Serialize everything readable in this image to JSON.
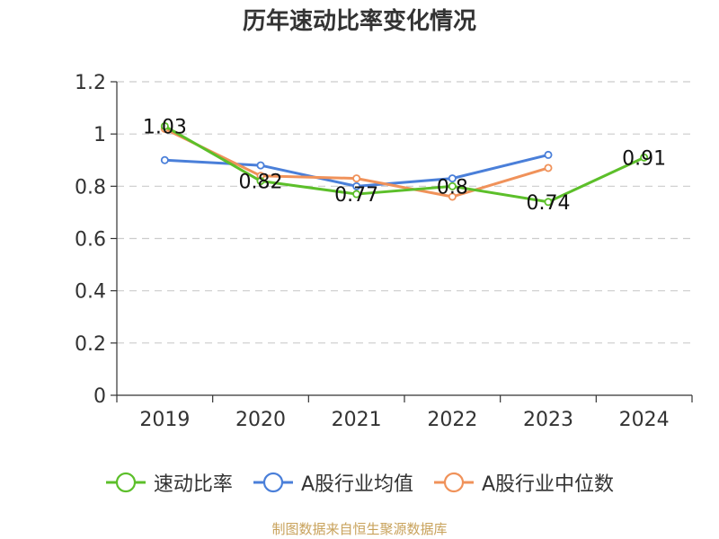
{
  "chart_data": {
    "type": "line",
    "title": "历年速动比率变化情况",
    "categories": [
      "2019",
      "2020",
      "2021",
      "2022",
      "2023",
      "2024"
    ],
    "ylim": [
      0,
      1.2
    ],
    "yticks": [
      "0",
      "0.2",
      "0.4",
      "0.6",
      "0.8",
      "1",
      "1.2"
    ],
    "grid": true,
    "legend_position": "bottom",
    "series": [
      {
        "name": "速动比率",
        "color": "#5cbf2a",
        "values": [
          1.03,
          0.82,
          0.77,
          0.8,
          0.74,
          0.91
        ],
        "labels": [
          "1.03",
          "0.82",
          "0.77",
          "0.8",
          "0.74",
          "0.91"
        ]
      },
      {
        "name": "A股行业均值",
        "color": "#4a7fd9",
        "values": [
          0.9,
          0.88,
          0.8,
          0.83,
          0.92,
          null
        ]
      },
      {
        "name": "A股行业中位数",
        "color": "#f0925a",
        "values": [
          1.02,
          0.84,
          0.83,
          0.76,
          0.87,
          null
        ]
      }
    ]
  },
  "footer": {
    "source": "制图数据来自恒生聚源数据库"
  }
}
